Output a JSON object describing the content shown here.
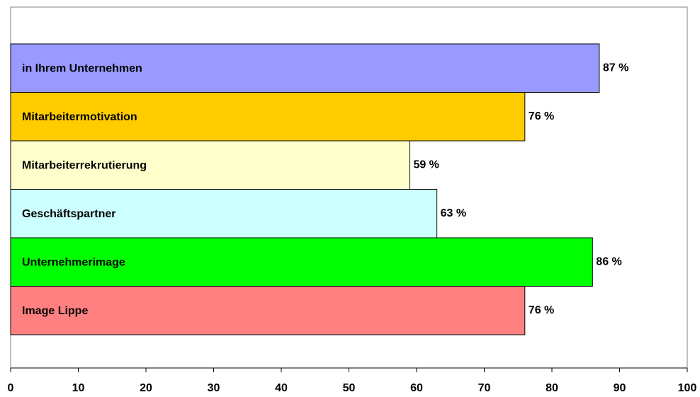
{
  "chart_data": {
    "type": "bar",
    "orientation": "horizontal",
    "categories": [
      "in Ihrem Unternehmen",
      "Mitarbeitermotivation",
      "Mitarbeiterrekrutierung",
      "Geschäftspartner",
      "Unternehmerimage",
      "Image Lippe"
    ],
    "values": [
      87,
      76,
      59,
      63,
      86,
      76
    ],
    "value_labels": [
      "87 %",
      "76 %",
      "59 %",
      "63 %",
      "86 %",
      "76 %"
    ],
    "colors": [
      "#9999ff",
      "#ffcc00",
      "#ffffcc",
      "#ccffff",
      "#00ff00",
      "#ff8080"
    ],
    "xlim": [
      0,
      100
    ],
    "xticks": [
      0,
      10,
      20,
      30,
      40,
      50,
      60,
      70,
      80,
      90,
      100
    ],
    "title": "",
    "xlabel": "",
    "ylabel": "",
    "grid": false,
    "legend": "none",
    "category_labels_inside_bars": true
  }
}
